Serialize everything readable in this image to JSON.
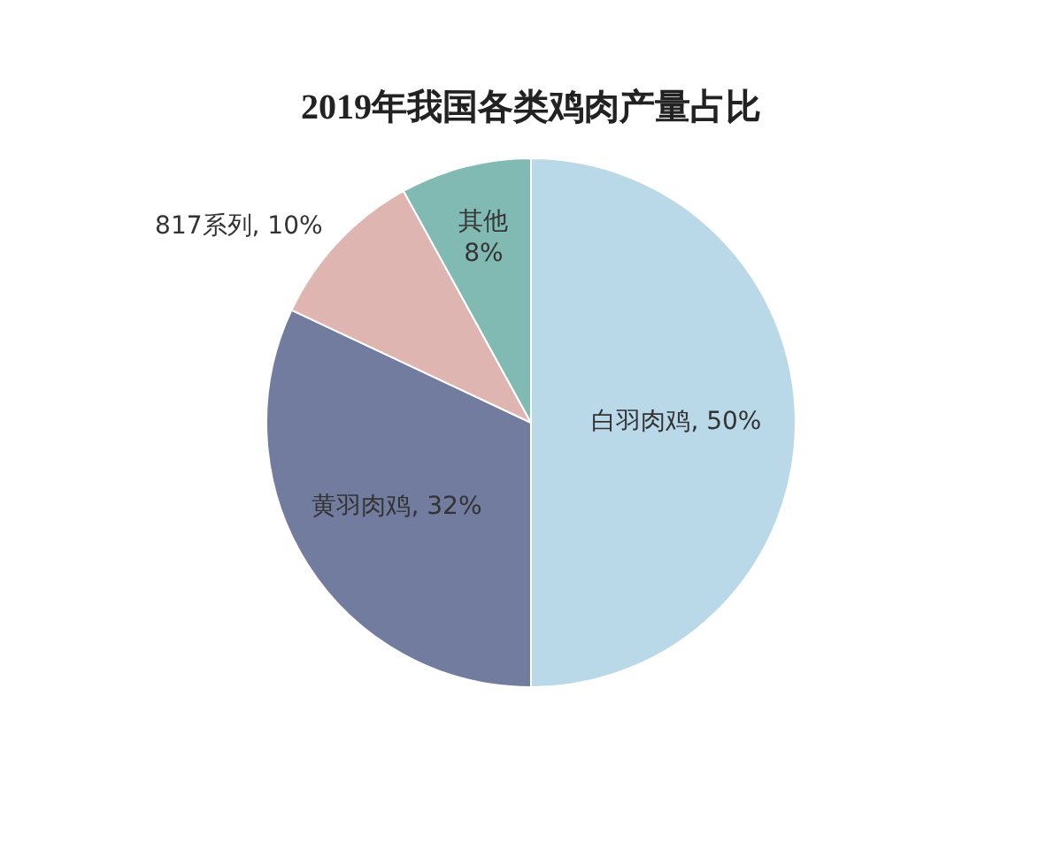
{
  "chart_data": {
    "type": "pie",
    "title": "2019年我国各类鸡肉产量占比",
    "categories": [
      "白羽肉鸡",
      "黄羽肉鸡",
      "817系列",
      "其他"
    ],
    "values": [
      50,
      32,
      10,
      8
    ],
    "colors": [
      "#b9d8e8",
      "#717c9f",
      "#dfb5b2",
      "#80bab2"
    ],
    "value_labels": [
      "50%",
      "32%",
      "10%",
      "8%"
    ],
    "legend": false
  }
}
